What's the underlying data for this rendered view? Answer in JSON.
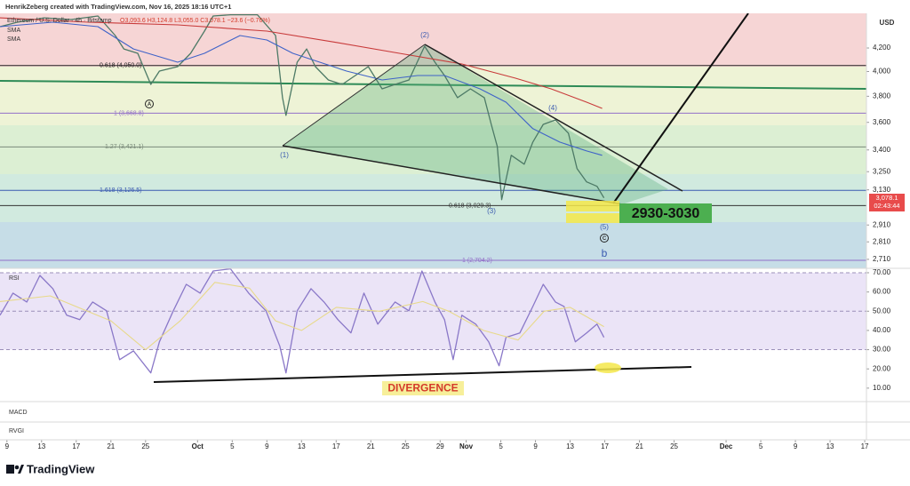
{
  "header": {
    "credit": "HenrikZeberg created with TradingView.com, Nov 16, 2025 18:16 UTC+1",
    "symbol": "Ethereum / U.S. Dollar · 4h · Bitstamp",
    "ohlc": "O3,093.6 H3,124.8 L3,055.0 C3,078.1 −23.6 (−0.76%)",
    "currency": "USD",
    "logo": "TradingView"
  },
  "chart_data": [
    {
      "type": "line",
      "log": true,
      "xlim": [
        -0.8,
        99.2
      ],
      "ylim": [
        2660,
        4513
      ],
      "yticks": [
        {
          "value": 4200,
          "label": "4,200"
        },
        {
          "value": 4000,
          "label": "4,000"
        },
        {
          "value": 3800,
          "label": "3,800"
        },
        {
          "value": 3600,
          "label": "3,600"
        },
        {
          "value": 3400,
          "label": "3,400"
        },
        {
          "value": 3250,
          "label": "3,250"
        },
        {
          "value": 3130,
          "label": "3,130"
        },
        {
          "value": 2910,
          "label": "2,910"
        },
        {
          "value": 2810,
          "label": "2,810"
        },
        {
          "value": 2710,
          "label": "2,710"
        }
      ],
      "xticks": [
        {
          "value": 0,
          "label": "9"
        },
        {
          "value": 4,
          "label": "13"
        },
        {
          "value": 8,
          "label": "17"
        },
        {
          "value": 12,
          "label": "21"
        },
        {
          "value": 16,
          "label": "25"
        },
        {
          "value": 22,
          "label": "Oct"
        },
        {
          "value": 26,
          "label": "5"
        },
        {
          "value": 30,
          "label": "9"
        },
        {
          "value": 34,
          "label": "13"
        },
        {
          "value": 38,
          "label": "17"
        },
        {
          "value": 42,
          "label": "21"
        },
        {
          "value": 46,
          "label": "25"
        },
        {
          "value": 50,
          "label": "29"
        },
        {
          "value": 53,
          "label": "Nov"
        },
        {
          "value": 57,
          "label": "5"
        },
        {
          "value": 61,
          "label": "9"
        },
        {
          "value": 65,
          "label": "13"
        },
        {
          "value": 69,
          "label": "17"
        },
        {
          "value": 73,
          "label": "21"
        },
        {
          "value": 77,
          "label": "25"
        },
        {
          "value": 83,
          "label": "Dec"
        },
        {
          "value": 87,
          "label": "5"
        },
        {
          "value": 91,
          "label": "9"
        },
        {
          "value": 95,
          "label": "13"
        },
        {
          "value": 99,
          "label": "17"
        }
      ],
      "series": [
        {
          "name": "Ethereum / U.S. Dollar",
          "color": "#4d7a66",
          "x": [
            -0.8,
            1.2,
            4.3,
            7.4,
            10.5,
            12.5,
            13.5,
            15.1,
            16.6,
            17.6,
            19.7,
            21.2,
            22.8,
            23.8,
            25.8,
            28.9,
            31,
            31.8,
            32.2,
            33.5,
            34.6,
            35.6,
            37.1,
            38.7,
            40.2,
            41.7,
            43.3,
            44.8,
            46.4,
            48.2,
            49.4,
            50.5,
            52,
            53.5,
            55.1,
            55.9,
            56.6,
            57.1,
            58.2,
            59.7,
            60.7,
            61.9,
            63.3,
            64.8,
            65.8,
            66.9,
            68.1,
            68.9
          ],
          "values": [
            4390,
            4431,
            4471,
            4455,
            4488,
            4310,
            4192,
            4154,
            3895,
            4004,
            4041,
            4154,
            4350,
            4488,
            4500,
            4500,
            4310,
            3789,
            3652,
            4078,
            4192,
            4041,
            3931,
            3895,
            3967,
            4041,
            3859,
            3895,
            3931,
            4216,
            4078,
            3967,
            3789,
            3859,
            3789,
            3585,
            3424,
            3067,
            3362,
            3301,
            3456,
            3585,
            3618,
            3520,
            3271,
            3182,
            3153,
            3078.1
          ]
        },
        {
          "name": "SMA",
          "color": "#3f63c8",
          "x": [
            -0.8,
            5.3,
            10.5,
            14.6,
            19.7,
            22.8,
            26.9,
            30,
            33,
            36.1,
            39.2,
            43.3,
            47.4,
            50.5,
            54.6,
            57.6,
            60.7,
            63.8,
            66.9,
            68.7
          ],
          "values": [
            4390,
            4431,
            4390,
            4192,
            4078,
            4154,
            4310,
            4270,
            4154,
            4078,
            4004,
            3931,
            3967,
            3967,
            3859,
            3754,
            3553,
            3456,
            3393,
            3362
          ]
        },
        {
          "name": "SMA",
          "color": "#c83a3a",
          "x": [
            -0.8,
            9.4,
            19.7,
            30,
            38.2,
            45.3,
            52.5,
            58.7,
            62.8,
            66.9,
            68.7
          ],
          "values": [
            4471,
            4431,
            4406,
            4350,
            4246,
            4154,
            4063,
            3945,
            3859,
            3754,
            3706
          ]
        }
      ],
      "fib_levels": [
        {
          "value": 4050,
          "label": "0.618 (4,050.0)"
        },
        {
          "value": 3668.8,
          "label": "1 (3,668.8)"
        },
        {
          "value": 3421.1,
          "label": "1.27 (3,421.1)"
        },
        {
          "value": 3126.5,
          "label": "1.618 (3,126.5)"
        },
        {
          "value": 3029.3,
          "label": "0.618 (3,029.3)"
        },
        {
          "value": 2704.2,
          "label": "1 (2,704.2)"
        }
      ],
      "last_price": {
        "value": 3078.1,
        "label": "3,078.1"
      },
      "countdown": "02:43:44",
      "annotations": {
        "w1": "(1)",
        "w2": "(2)",
        "w3": "(3)",
        "w4": "(4)",
        "w5": "(5)",
        "a": "A",
        "c": "C",
        "b": "b",
        "zone": "2930-3030"
      }
    },
    {
      "type": "line",
      "title": "RSI",
      "xlim": [
        -0.8,
        99.2
      ],
      "ylim": [
        3,
        72.3
      ],
      "yticks": [
        {
          "value": 70,
          "label": "70.00"
        },
        {
          "value": 60,
          "label": "60.00"
        },
        {
          "value": 50,
          "label": "50.00"
        },
        {
          "value": 40,
          "label": "40.00"
        },
        {
          "value": 30,
          "label": "30.00"
        },
        {
          "value": 20,
          "label": "20.00"
        },
        {
          "value": 10,
          "label": "10.00"
        }
      ],
      "band": [
        30,
        70
      ],
      "levels": [
        70,
        50,
        30
      ],
      "series": [
        {
          "name": "RSI",
          "color": "#8a78c8",
          "x": [
            -0.8,
            0.7,
            2.3,
            3.8,
            5.3,
            6.9,
            8.4,
            9.9,
            11.5,
            13,
            14.6,
            16.6,
            17.6,
            19.2,
            20.7,
            22.3,
            23.8,
            25.8,
            27.9,
            29.9,
            31.5,
            32.2,
            33.5,
            35.1,
            36.6,
            38.2,
            39.7,
            41.2,
            42.8,
            44.8,
            46.4,
            47.9,
            49.4,
            50.5,
            51.5,
            52.5,
            54.1,
            55.6,
            56.8,
            57.6,
            59.2,
            60.7,
            61.9,
            63.3,
            64.3,
            65.6,
            66.9,
            68.1,
            68.9
          ],
          "values": [
            47.9,
            59.4,
            54.8,
            68.6,
            61.7,
            47.9,
            45.6,
            54.8,
            50.2,
            24.8,
            29.4,
            17.9,
            34.1,
            50.2,
            64,
            59.4,
            70.9,
            72,
            59.4,
            50.2,
            31.8,
            17.9,
            50.2,
            61.7,
            54.8,
            45.6,
            38.7,
            59.4,
            43.3,
            54.8,
            50.2,
            70.9,
            54.8,
            45.6,
            24.8,
            47.9,
            43.3,
            34.1,
            21.6,
            36.4,
            38.7,
            52.5,
            64,
            54.8,
            52.5,
            34.1,
            38.7,
            43.3,
            36.4
          ]
        },
        {
          "color": "#e8d98a",
          "x": [
            -0.8,
            5,
            12,
            16,
            20,
            24,
            28,
            31,
            34,
            38,
            43,
            48,
            51,
            55,
            59,
            62,
            65,
            68.9
          ],
          "values": [
            55,
            58,
            45,
            30,
            45,
            65,
            62,
            45,
            40,
            52,
            50,
            55,
            50,
            40,
            35,
            50,
            52,
            42
          ]
        }
      ],
      "annotations": {
        "divergence": "DIVERGENCE"
      }
    },
    {
      "type": "line",
      "title": "MACD"
    },
    {
      "type": "line",
      "title": "RVGI"
    }
  ]
}
